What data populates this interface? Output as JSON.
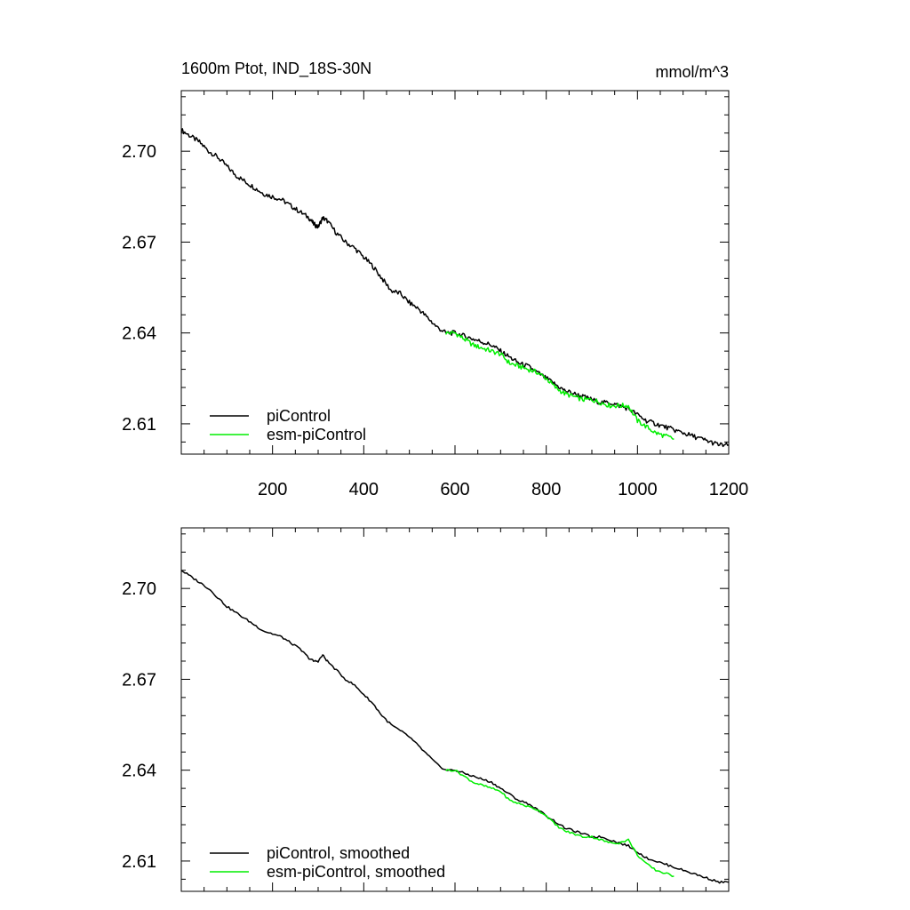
{
  "figure": {
    "title_left": "1600m Ptot, IND_18S-30N",
    "title_right": "mmol/m^3"
  },
  "chart_data": [
    {
      "type": "line",
      "title": "1600m Ptot, IND_18S-30N",
      "units": "mmol/m^3",
      "xlabel": "",
      "ylabel": "",
      "xlim": [
        0,
        1200
      ],
      "ylim": [
        2.6,
        2.72
      ],
      "x_ticks": [
        200,
        400,
        600,
        800,
        1000,
        1200
      ],
      "y_ticks": [
        2.61,
        2.64,
        2.67,
        2.7
      ],
      "y_tick_labels": [
        "2.61",
        "2.64",
        "2.67",
        "2.70"
      ],
      "legend_position": "bottom-left",
      "grid": false,
      "series": [
        {
          "name": "piControl",
          "color": "#000000",
          "x": [
            0,
            20,
            40,
            60,
            80,
            100,
            120,
            140,
            160,
            180,
            200,
            220,
            240,
            260,
            280,
            290,
            300,
            310,
            320,
            340,
            360,
            380,
            400,
            420,
            440,
            460,
            480,
            500,
            520,
            540,
            560,
            580,
            600,
            620,
            640,
            660,
            680,
            700,
            720,
            740,
            760,
            780,
            800,
            820,
            840,
            860,
            880,
            900,
            920,
            940,
            960,
            980,
            1000,
            1020,
            1040,
            1060,
            1080,
            1100,
            1120,
            1140,
            1160,
            1180,
            1200
          ],
          "values": [
            2.707,
            2.705,
            2.703,
            2.7,
            2.698,
            2.695,
            2.692,
            2.69,
            2.688,
            2.686,
            2.685,
            2.684,
            2.682,
            2.68,
            2.678,
            2.676,
            2.675,
            2.678,
            2.677,
            2.673,
            2.67,
            2.668,
            2.665,
            2.662,
            2.658,
            2.654,
            2.653,
            2.65,
            2.648,
            2.645,
            2.642,
            2.64,
            2.64,
            2.639,
            2.638,
            2.637,
            2.636,
            2.634,
            2.632,
            2.63,
            2.629,
            2.627,
            2.625,
            2.623,
            2.621,
            2.62,
            2.619,
            2.618,
            2.617,
            2.617,
            2.616,
            2.615,
            2.613,
            2.611,
            2.61,
            2.609,
            2.608,
            2.607,
            2.606,
            2.605,
            2.604,
            2.603,
            2.603
          ]
        },
        {
          "name": "esm-piControl",
          "color": "#00ee00",
          "x": [
            580,
            600,
            620,
            640,
            660,
            680,
            700,
            720,
            740,
            760,
            780,
            800,
            820,
            840,
            860,
            880,
            900,
            920,
            940,
            960,
            980,
            1000,
            1020,
            1040,
            1060,
            1080
          ],
          "values": [
            2.64,
            2.64,
            2.638,
            2.636,
            2.635,
            2.634,
            2.633,
            2.63,
            2.629,
            2.628,
            2.627,
            2.625,
            2.622,
            2.62,
            2.619,
            2.618,
            2.618,
            2.617,
            2.616,
            2.616,
            2.616,
            2.611,
            2.609,
            2.607,
            2.606,
            2.605
          ]
        }
      ]
    },
    {
      "type": "line",
      "title": "",
      "xlabel": "",
      "ylabel": "",
      "xlim": [
        0,
        1200
      ],
      "ylim": [
        2.6,
        2.72
      ],
      "x_ticks": [
        200,
        400,
        600,
        800,
        1000,
        1200
      ],
      "y_ticks": [
        2.61,
        2.64,
        2.67,
        2.7
      ],
      "y_tick_labels": [
        "2.61",
        "2.64",
        "2.67",
        "2.70"
      ],
      "legend_position": "bottom-left",
      "grid": false,
      "series": [
        {
          "name": "piControl, smoothed",
          "color": "#000000",
          "x": [
            0,
            20,
            40,
            60,
            80,
            100,
            120,
            140,
            160,
            180,
            200,
            220,
            240,
            260,
            280,
            290,
            300,
            310,
            320,
            340,
            360,
            380,
            400,
            420,
            440,
            460,
            480,
            500,
            520,
            540,
            560,
            580,
            600,
            620,
            640,
            660,
            680,
            700,
            720,
            740,
            760,
            780,
            800,
            820,
            840,
            860,
            880,
            900,
            920,
            940,
            960,
            980,
            1000,
            1020,
            1040,
            1060,
            1080,
            1100,
            1120,
            1140,
            1160,
            1180,
            1200
          ],
          "values": [
            2.706,
            2.704,
            2.702,
            2.7,
            2.697,
            2.694,
            2.692,
            2.69,
            2.688,
            2.686,
            2.685,
            2.684,
            2.682,
            2.68,
            2.677,
            2.676,
            2.676,
            2.678,
            2.676,
            2.673,
            2.67,
            2.668,
            2.665,
            2.662,
            2.658,
            2.655,
            2.653,
            2.651,
            2.648,
            2.645,
            2.642,
            2.64,
            2.64,
            2.639,
            2.638,
            2.637,
            2.636,
            2.634,
            2.632,
            2.63,
            2.629,
            2.627,
            2.625,
            2.623,
            2.621,
            2.62,
            2.619,
            2.618,
            2.618,
            2.617,
            2.616,
            2.615,
            2.613,
            2.611,
            2.61,
            2.609,
            2.608,
            2.607,
            2.606,
            2.605,
            2.604,
            2.603,
            2.603
          ]
        },
        {
          "name": "esm-piControl, smoothed",
          "color": "#00ee00",
          "x": [
            580,
            600,
            620,
            640,
            660,
            680,
            700,
            720,
            740,
            760,
            780,
            800,
            820,
            840,
            860,
            880,
            900,
            920,
            940,
            960,
            980,
            1000,
            1020,
            1040,
            1060,
            1080
          ],
          "values": [
            2.64,
            2.64,
            2.638,
            2.636,
            2.635,
            2.634,
            2.633,
            2.63,
            2.629,
            2.628,
            2.627,
            2.625,
            2.622,
            2.62,
            2.619,
            2.618,
            2.618,
            2.617,
            2.616,
            2.616,
            2.617,
            2.612,
            2.609,
            2.607,
            2.606,
            2.605
          ]
        }
      ]
    }
  ]
}
